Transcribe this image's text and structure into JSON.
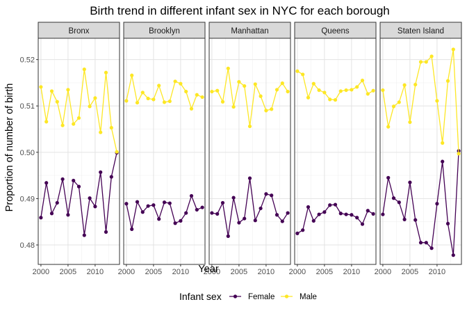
{
  "chart_data": {
    "type": "line",
    "title": "Birth trend in different infant sex in NYC for each borough",
    "xlabel": "Year",
    "ylabel": "Proportion of number of birth",
    "xlim": [
      1999.5,
      2014.5
    ],
    "ylim": [
      0.4758,
      0.5246
    ],
    "xticks": [
      2000,
      2005,
      2010
    ],
    "yticks": [
      0.48,
      0.49,
      0.5,
      0.51,
      0.52
    ],
    "ytick_labels": [
      "0.48",
      "0.49",
      "0.50",
      "0.51",
      "0.52"
    ],
    "grid": true,
    "facet_by": "borough",
    "legend": {
      "title": "Infant sex",
      "position": "bottom"
    },
    "x": [
      2000,
      2001,
      2002,
      2003,
      2004,
      2005,
      2006,
      2007,
      2008,
      2009,
      2010,
      2011,
      2012,
      2013,
      2014
    ],
    "series_colors": {
      "Female": "#440154",
      "Male": "#FDE725"
    },
    "facets": [
      {
        "label": "Bronx",
        "series": [
          {
            "name": "Female",
            "values": [
              0.4859,
              0.4934,
              0.4868,
              0.4891,
              0.4942,
              0.4865,
              0.4939,
              0.4926,
              0.4821,
              0.4901,
              0.4883,
              0.4957,
              0.4828,
              0.4947,
              0.4999
            ]
          },
          {
            "name": "Male",
            "values": [
              0.5141,
              0.5066,
              0.5132,
              0.5109,
              0.5058,
              0.5135,
              0.5061,
              0.5074,
              0.5179,
              0.5099,
              0.5117,
              0.5043,
              0.5172,
              0.5053,
              0.5001
            ]
          }
        ]
      },
      {
        "label": "Brooklyn",
        "series": [
          {
            "name": "Female",
            "values": [
              0.4889,
              0.4834,
              0.4893,
              0.4871,
              0.4884,
              0.4886,
              0.4856,
              0.4892,
              0.489,
              0.4847,
              0.4852,
              0.4869,
              0.4906,
              0.4876,
              0.4881
            ]
          },
          {
            "name": "Male",
            "values": [
              0.5111,
              0.5166,
              0.5107,
              0.5129,
              0.5116,
              0.5114,
              0.5144,
              0.5108,
              0.511,
              0.5153,
              0.5148,
              0.5131,
              0.5094,
              0.5124,
              0.5119
            ]
          }
        ]
      },
      {
        "label": "Manhattan",
        "series": [
          {
            "name": "Female",
            "values": [
              0.4869,
              0.4867,
              0.4891,
              0.4819,
              0.4902,
              0.4848,
              0.4857,
              0.4944,
              0.4853,
              0.4879,
              0.491,
              0.4907,
              0.4865,
              0.4851,
              0.4869
            ]
          },
          {
            "name": "Male",
            "values": [
              0.5131,
              0.5133,
              0.5109,
              0.5181,
              0.5098,
              0.5152,
              0.5143,
              0.5056,
              0.5147,
              0.5121,
              0.509,
              0.5093,
              0.5135,
              0.5149,
              0.5131
            ]
          }
        ]
      },
      {
        "label": "Queens",
        "series": [
          {
            "name": "Female",
            "values": [
              0.4825,
              0.4832,
              0.4882,
              0.4852,
              0.4866,
              0.4871,
              0.4886,
              0.4887,
              0.4868,
              0.4866,
              0.4865,
              0.4859,
              0.4845,
              0.4874,
              0.4867
            ]
          },
          {
            "name": "Male",
            "values": [
              0.5175,
              0.5168,
              0.5118,
              0.5148,
              0.5134,
              0.5129,
              0.5114,
              0.5113,
              0.5132,
              0.5134,
              0.5135,
              0.5141,
              0.5155,
              0.5126,
              0.5133
            ]
          }
        ]
      },
      {
        "label": "Staten Island",
        "series": [
          {
            "name": "Female",
            "values": [
              0.4866,
              0.4945,
              0.4901,
              0.4892,
              0.4855,
              0.4935,
              0.4854,
              0.4805,
              0.4805,
              0.4793,
              0.4889,
              0.498,
              0.4846,
              0.4778,
              0.5003
            ]
          },
          {
            "name": "Male",
            "values": [
              0.5134,
              0.5055,
              0.5099,
              0.5108,
              0.5145,
              0.5065,
              0.5146,
              0.5195,
              0.5195,
              0.5207,
              0.5111,
              0.502,
              0.5154,
              0.5222,
              0.4997
            ]
          }
        ]
      }
    ]
  }
}
